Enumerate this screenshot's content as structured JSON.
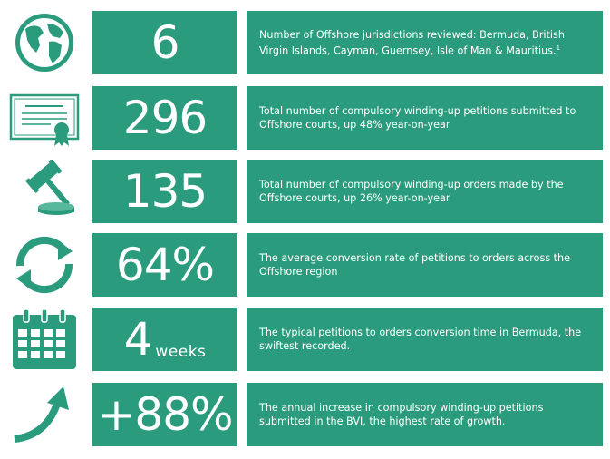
{
  "colors": {
    "accent": "#2a9b7c",
    "text_on_accent": "#ffffff"
  },
  "stats": [
    {
      "icon": "globe-icon",
      "value": "6",
      "unit": "",
      "description": "Number of Offshore jurisdictions reviewed: Bermuda, British Virgin Islands, Cayman, Guernsey, Isle of Man & Mauritius.",
      "footnote": "1"
    },
    {
      "icon": "certificate-icon",
      "value": "296",
      "unit": "",
      "description": "Total number of compulsory winding-up petitions submitted to Offshore courts, up 48% year-on-year",
      "footnote": ""
    },
    {
      "icon": "gavel-icon",
      "value": "135",
      "unit": "",
      "description": "Total number of compulsory winding-up orders made by the Offshore courts, up 26% year-on-year",
      "footnote": ""
    },
    {
      "icon": "cycle-arrows-icon",
      "value": "64%",
      "unit": "",
      "description": "The average conversion rate of petitions to orders across the Offshore region",
      "footnote": ""
    },
    {
      "icon": "calendar-icon",
      "value": "4",
      "unit": "weeks",
      "description": "The typical petitions to orders conversion time in Bermuda, the swiftest recorded.",
      "footnote": ""
    },
    {
      "icon": "upward-curve-arrow-icon",
      "value": "+88%",
      "unit": "",
      "description": "The annual increase in compulsory winding-up petitions submitted in the BVI, the highest rate of growth.",
      "footnote": ""
    }
  ]
}
